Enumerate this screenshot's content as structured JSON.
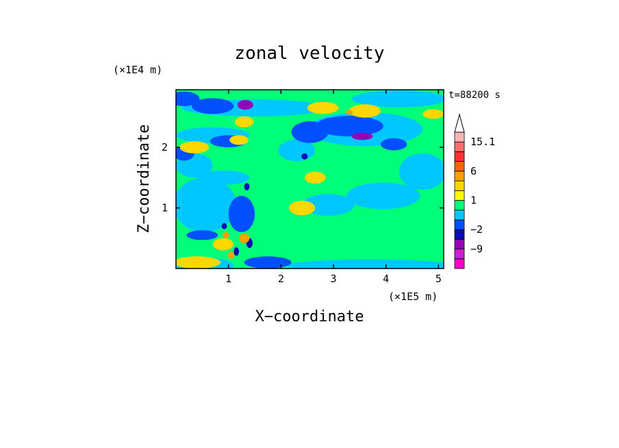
{
  "chart_data": {
    "type": "heatmap",
    "title": "zonal velocity",
    "xlabel": "X−coordinate",
    "ylabel": "Z−coordinate",
    "x_unit": "(×1E5 m)",
    "y_unit": "(×1E4 m)",
    "time_label": "t=88200 s",
    "xlim": [
      0,
      5.1
    ],
    "ylim": [
      0,
      2.95
    ],
    "x_ticks": [
      {
        "value": 1,
        "label": "1"
      },
      {
        "value": 2,
        "label": "2"
      },
      {
        "value": 3,
        "label": "3"
      },
      {
        "value": 4,
        "label": "4"
      },
      {
        "value": 5,
        "label": "5"
      }
    ],
    "y_ticks": [
      {
        "value": 1,
        "label": "1"
      },
      {
        "value": 2,
        "label": "2"
      }
    ],
    "colorbar": {
      "levels": [
        -15,
        -12,
        -9,
        -6,
        -2,
        -1,
        0,
        1,
        2,
        4,
        6,
        9,
        12,
        15.1
      ],
      "colors": [
        "#ff00c8",
        "#d21ed2",
        "#9600b4",
        "#0a0ab4",
        "#0050ff",
        "#00c8ff",
        "#00ff78",
        "#ffff00",
        "#ffd700",
        "#ffa000",
        "#ff6400",
        "#ff3232",
        "#ff6e6e",
        "#ffb4b4"
      ],
      "extend_color": "#ffffff",
      "labels": [
        {
          "value": 15.1,
          "label": "15.1"
        },
        {
          "value": 6,
          "label": "6"
        },
        {
          "value": 1,
          "label": "1"
        },
        {
          "value": -2,
          "label": "−2"
        },
        {
          "value": -9,
          "label": "−9"
        }
      ]
    },
    "background_value": 0.5,
    "regions": [
      {
        "x": 0.55,
        "z": 0.05,
        "rx": 0.55,
        "rz": 0.13,
        "v": -0.5
      },
      {
        "x": 3.7,
        "z": 0.05,
        "rx": 1.6,
        "rz": 0.1,
        "v": -0.5
      },
      {
        "x": 4.7,
        "z": 0.75,
        "rx": 0.5,
        "rz": 0.35,
        "v": 0.5
      },
      {
        "x": 0.55,
        "z": 1.05,
        "rx": 0.6,
        "rz": 0.45,
        "v": -0.5
      },
      {
        "x": 0.35,
        "z": 1.7,
        "rx": 0.35,
        "rz": 0.2,
        "v": -0.5
      },
      {
        "x": 0.9,
        "z": 1.5,
        "rx": 0.5,
        "rz": 0.12,
        "v": -0.5
      },
      {
        "x": 2.9,
        "z": 1.05,
        "rx": 0.5,
        "rz": 0.18,
        "v": -0.5
      },
      {
        "x": 3.95,
        "z": 1.2,
        "rx": 0.7,
        "rz": 0.22,
        "v": -0.5
      },
      {
        "x": 4.7,
        "z": 1.6,
        "rx": 0.45,
        "rz": 0.3,
        "v": -0.5
      },
      {
        "x": 3.6,
        "z": 2.3,
        "rx": 1.1,
        "rz": 0.28,
        "v": -0.5
      },
      {
        "x": 0.7,
        "z": 2.2,
        "rx": 0.7,
        "rz": 0.13,
        "v": -0.5
      },
      {
        "x": 1.5,
        "z": 2.65,
        "rx": 1.4,
        "rz": 0.14,
        "v": -0.5
      },
      {
        "x": 4.25,
        "z": 2.8,
        "rx": 0.9,
        "rz": 0.14,
        "v": -0.5
      },
      {
        "x": 2.3,
        "z": 1.95,
        "rx": 0.35,
        "rz": 0.18,
        "v": -0.5
      },
      {
        "x": 0.15,
        "z": 2.8,
        "rx": 0.3,
        "rz": 0.12,
        "v": -1.5
      },
      {
        "x": 0.7,
        "z": 2.68,
        "rx": 0.4,
        "rz": 0.13,
        "v": -1.5
      },
      {
        "x": 0.15,
        "z": 1.9,
        "rx": 0.2,
        "rz": 0.12,
        "v": -1.5
      },
      {
        "x": 1.0,
        "z": 2.1,
        "rx": 0.35,
        "rz": 0.1,
        "v": -1.5
      },
      {
        "x": 2.55,
        "z": 2.25,
        "rx": 0.35,
        "rz": 0.18,
        "v": -1.5
      },
      {
        "x": 3.3,
        "z": 2.35,
        "rx": 0.65,
        "rz": 0.17,
        "v": -1.5
      },
      {
        "x": 4.15,
        "z": 2.05,
        "rx": 0.25,
        "rz": 0.1,
        "v": -1.5
      },
      {
        "x": 1.75,
        "z": 0.1,
        "rx": 0.45,
        "rz": 0.1,
        "v": -1.5
      },
      {
        "x": 1.25,
        "z": 0.9,
        "rx": 0.25,
        "rz": 0.3,
        "v": -1.5
      },
      {
        "x": 0.5,
        "z": 0.55,
        "rx": 0.3,
        "rz": 0.08,
        "v": -1.5
      },
      {
        "x": 1.32,
        "z": 2.7,
        "rx": 0.15,
        "rz": 0.08,
        "v": -7
      },
      {
        "x": 3.55,
        "z": 2.18,
        "rx": 0.2,
        "rz": 0.06,
        "v": -7
      },
      {
        "x": 2.45,
        "z": 1.85,
        "rx": 0.06,
        "rz": 0.05,
        "v": -4
      },
      {
        "x": 1.4,
        "z": 0.42,
        "rx": 0.06,
        "rz": 0.08,
        "v": -4
      },
      {
        "x": 1.15,
        "z": 0.28,
        "rx": 0.05,
        "rz": 0.07,
        "v": -4
      },
      {
        "x": 0.92,
        "z": 0.7,
        "rx": 0.05,
        "rz": 0.05,
        "v": -4
      },
      {
        "x": 1.35,
        "z": 1.35,
        "rx": 0.05,
        "rz": 0.06,
        "v": -4
      },
      {
        "x": 0.35,
        "z": 2.0,
        "rx": 0.28,
        "rz": 0.1,
        "v": 2.5
      },
      {
        "x": 1.3,
        "z": 2.42,
        "rx": 0.18,
        "rz": 0.09,
        "v": 2.5
      },
      {
        "x": 1.2,
        "z": 2.12,
        "rx": 0.18,
        "rz": 0.08,
        "v": 2.5
      },
      {
        "x": 2.8,
        "z": 2.65,
        "rx": 0.3,
        "rz": 0.1,
        "v": 2.5
      },
      {
        "x": 3.6,
        "z": 2.6,
        "rx": 0.3,
        "rz": 0.11,
        "v": 2.5
      },
      {
        "x": 2.65,
        "z": 1.5,
        "rx": 0.2,
        "rz": 0.1,
        "v": 2.5
      },
      {
        "x": 4.9,
        "z": 2.55,
        "rx": 0.2,
        "rz": 0.08,
        "v": 2.5
      },
      {
        "x": 2.4,
        "z": 1.0,
        "rx": 0.25,
        "rz": 0.12,
        "v": 2.5
      },
      {
        "x": 0.4,
        "z": 0.1,
        "rx": 0.45,
        "rz": 0.1,
        "v": 2.5
      },
      {
        "x": 0.9,
        "z": 0.4,
        "rx": 0.2,
        "rz": 0.1,
        "v": 2.5
      },
      {
        "x": 1.3,
        "z": 0.5,
        "rx": 0.1,
        "rz": 0.08,
        "v": 5
      },
      {
        "x": 1.05,
        "z": 0.22,
        "rx": 0.06,
        "rz": 0.06,
        "v": 5
      },
      {
        "x": 0.95,
        "z": 0.55,
        "rx": 0.06,
        "rz": 0.05,
        "v": 5
      },
      {
        "x": 3.3,
        "z": 2.58,
        "rx": 0.07,
        "rz": 0.04,
        "v": 5
      }
    ]
  }
}
